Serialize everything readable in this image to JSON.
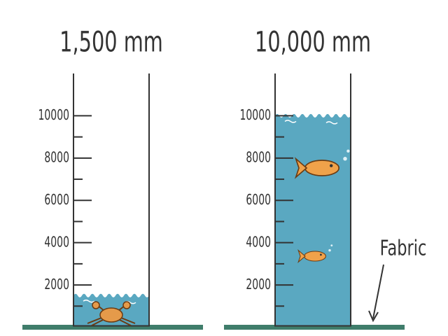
{
  "panels": [
    {
      "title": "1,500 mm",
      "water_level": 1500,
      "ylim": [
        0,
        12000
      ],
      "ticks": [
        2000,
        4000,
        6000,
        8000,
        10000
      ],
      "minor_ticks": [
        1000,
        3000,
        5000,
        7000,
        9000
      ],
      "creature": "crab"
    },
    {
      "title": "10,000 mm",
      "water_level": 10000,
      "ylim": [
        0,
        12000
      ],
      "ticks": [
        2000,
        4000,
        6000,
        8000,
        10000
      ],
      "minor_ticks": [
        1000,
        3000,
        5000,
        7000,
        9000
      ],
      "creature": "fish"
    }
  ],
  "label": "Fabric"
}
